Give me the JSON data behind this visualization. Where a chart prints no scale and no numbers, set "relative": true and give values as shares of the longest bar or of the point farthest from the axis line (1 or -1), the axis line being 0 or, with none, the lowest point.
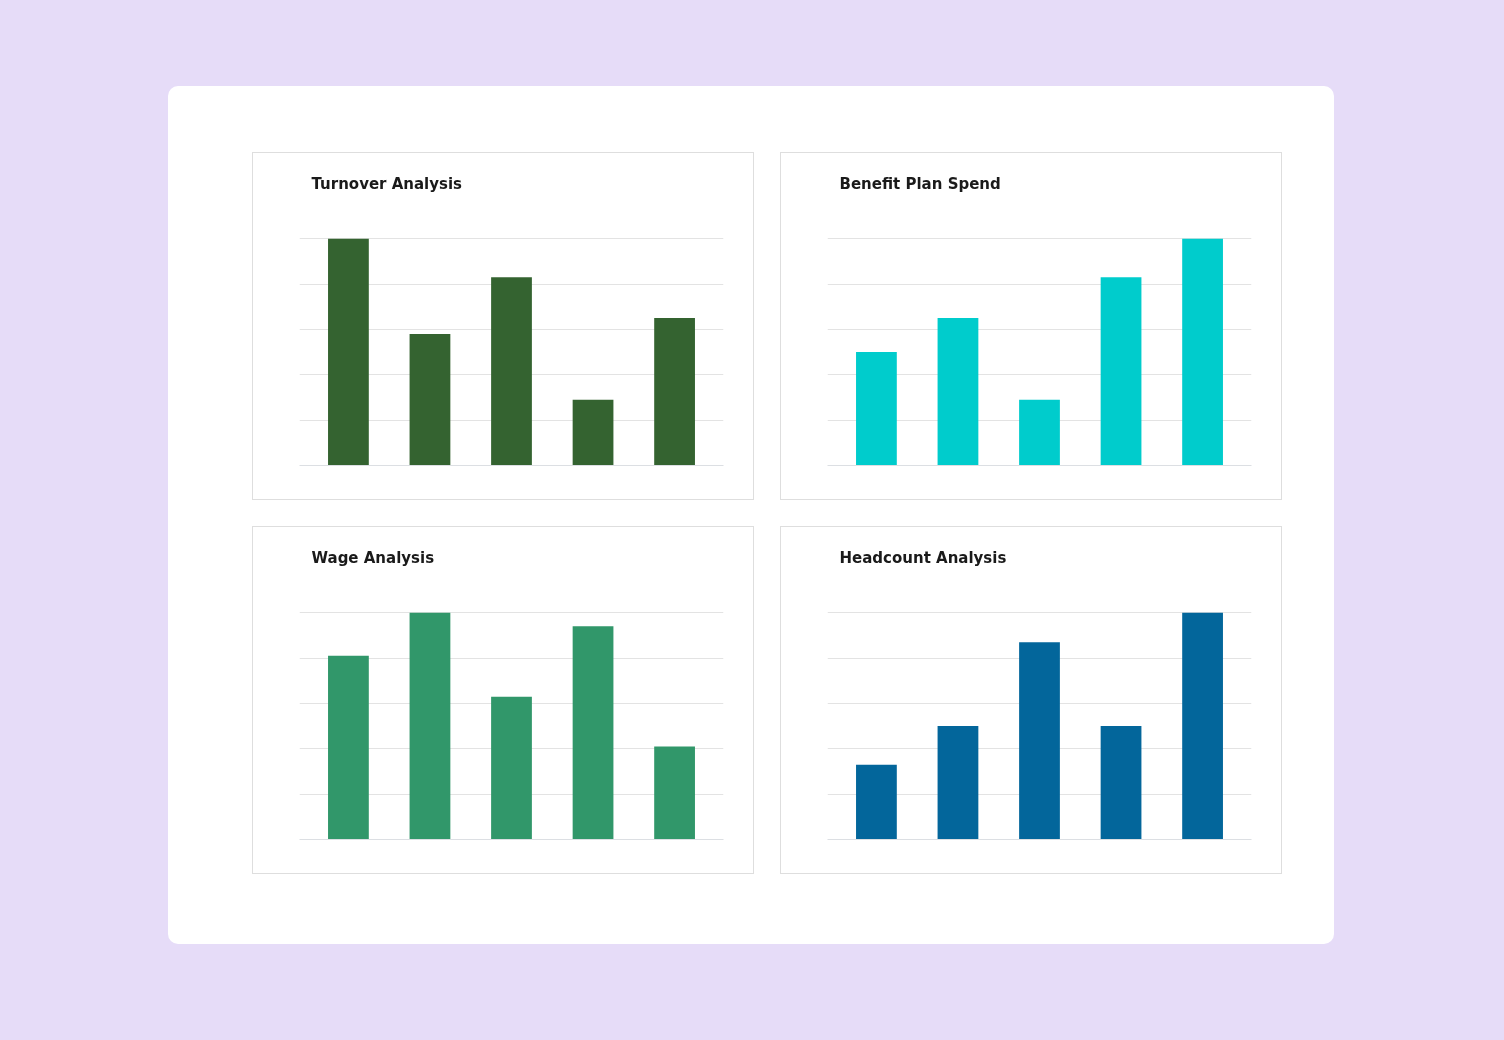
{
  "chart_data": [
    {
      "type": "bar",
      "title": "Turnover Analysis",
      "categories": [
        null,
        null,
        null,
        null,
        null
      ],
      "relative": true,
      "grid": "y",
      "values": [
        1,
        0.58,
        0.83,
        0.29,
        0.65
      ],
      "color": "#346330"
    },
    {
      "type": "bar",
      "title": "Benefit Plan Spend",
      "categories": [
        null,
        null,
        null,
        null,
        null
      ],
      "relative": true,
      "grid": "y",
      "values": [
        0.5,
        0.65,
        0.29,
        0.83,
        1
      ],
      "color": "#00cccc"
    },
    {
      "type": "bar",
      "title": "Wage Analysis",
      "categories": [
        null,
        null,
        null,
        null,
        null
      ],
      "relative": true,
      "grid": "y",
      "values": [
        0.81,
        1,
        0.63,
        0.94,
        0.41
      ],
      "color": "#31976a"
    },
    {
      "type": "bar",
      "title": "Headcount Analysis",
      "categories": [
        null,
        null,
        null,
        null,
        null
      ],
      "relative": true,
      "grid": "y",
      "values": [
        0.33,
        0.5,
        0.87,
        0.5,
        1
      ],
      "color": "#03669b"
    }
  ]
}
